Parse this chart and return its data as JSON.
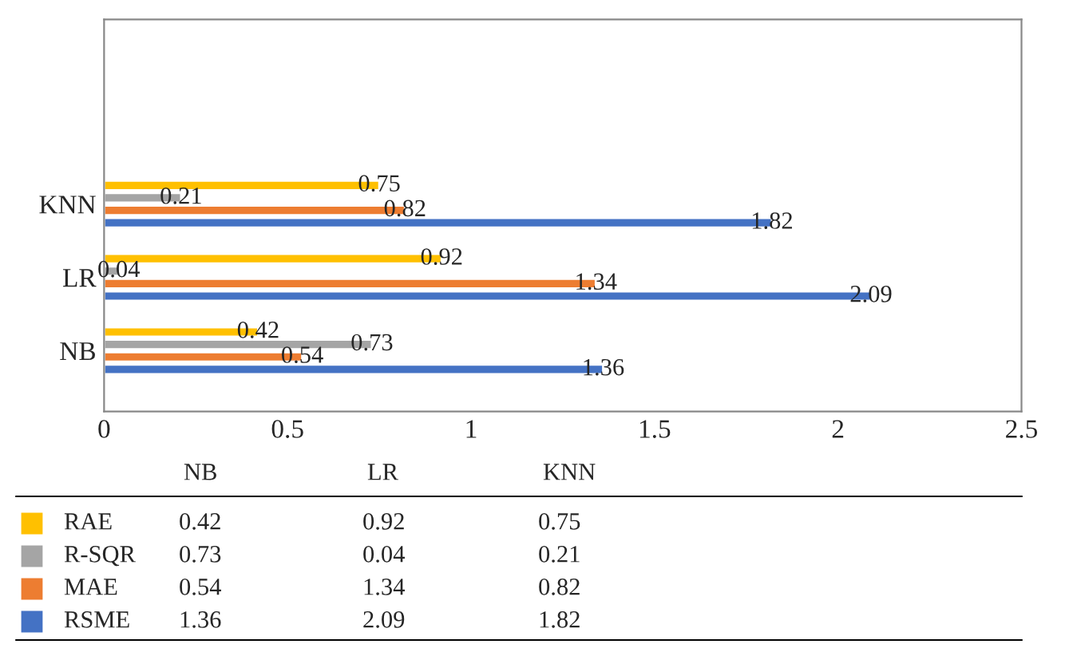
{
  "chart_data": {
    "type": "bar",
    "orientation": "horizontal",
    "categories": [
      "KNN",
      "LR",
      "NB"
    ],
    "series": [
      {
        "name": "RAE",
        "color": "#ffc000",
        "values": [
          0.75,
          0.92,
          0.42
        ],
        "value_labels": [
          "0.75",
          "0.92",
          "0.42"
        ]
      },
      {
        "name": "R-SQR",
        "color": "#a5a5a5",
        "values": [
          0.21,
          0.04,
          0.73
        ],
        "value_labels": [
          "0.21",
          "0.04",
          "0.73"
        ]
      },
      {
        "name": "MAE",
        "color": "#ed7d31",
        "values": [
          0.82,
          1.34,
          0.54
        ],
        "value_labels": [
          "0.82",
          "1.34",
          "0.54"
        ]
      },
      {
        "name": "RSME",
        "color": "#4472c4",
        "values": [
          1.82,
          2.09,
          1.36
        ],
        "value_labels": [
          "1.82",
          "2.09",
          "1.36"
        ]
      }
    ],
    "annotations": [
      "0.42",
      "0.92",
      "0.75",
      "0.73",
      "0.04",
      "0.21",
      "0.54",
      "1.34",
      "0.82",
      "1.36",
      "2.09",
      "1.82"
    ],
    "xlim": [
      0,
      2.5
    ],
    "xticks": [
      0,
      0.5,
      1,
      1.5,
      2,
      2.5
    ],
    "grid": false,
    "legend": "bottom"
  }
}
